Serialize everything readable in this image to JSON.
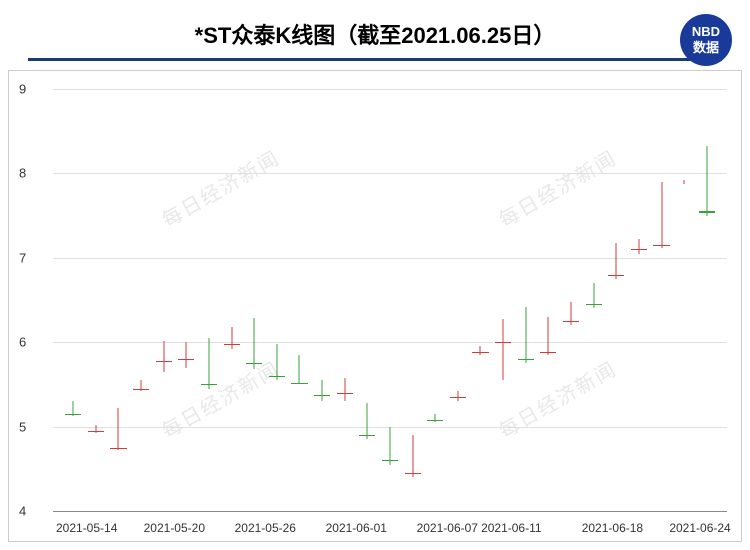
{
  "header": {
    "title": "*ST众泰K线图（截至2021.06.25日）",
    "logo_top": "NBD",
    "logo_bottom": "数据"
  },
  "chart": {
    "type": "candlestick",
    "ylim": [
      4,
      9
    ],
    "yticks": [
      4,
      5,
      6,
      7,
      8,
      9
    ],
    "xlabels": [
      "2021-05-14",
      "2021-05-20",
      "2021-05-26",
      "2021-06-01",
      "2021-06-07",
      "2021-06-11",
      "2021-06-18",
      "2021-06-24"
    ],
    "xlabel_positions_pct": [
      5,
      18,
      31.5,
      45,
      58.5,
      68,
      83,
      96
    ],
    "background_color": "#ffffff",
    "grid_color": "#e0e0e0",
    "up_color": "#d43b3b",
    "down_color": "#3aa03a",
    "watermark_text": "每日经济新闻",
    "watermark_color": "#e8e8e8",
    "candle_width_pct": 2.4,
    "candles": [
      {
        "o": 5.28,
        "c": 5.15,
        "h": 5.3,
        "l": 5.12
      },
      {
        "o": 4.95,
        "c": 4.99,
        "h": 5.02,
        "l": 4.92
      },
      {
        "o": 4.75,
        "c": 5.22,
        "h": 5.22,
        "l": 4.72
      },
      {
        "o": 5.45,
        "c": 5.5,
        "h": 5.55,
        "l": 5.42
      },
      {
        "o": 5.78,
        "c": 5.99,
        "h": 6.02,
        "l": 5.65
      },
      {
        "o": 5.8,
        "c": 5.92,
        "h": 6.0,
        "l": 5.7
      },
      {
        "o": 6.0,
        "c": 5.5,
        "h": 6.05,
        "l": 5.45
      },
      {
        "o": 5.98,
        "c": 6.04,
        "h": 6.18,
        "l": 5.92
      },
      {
        "o": 6.02,
        "c": 5.75,
        "h": 6.29,
        "l": 5.68
      },
      {
        "o": 5.9,
        "c": 5.6,
        "h": 5.98,
        "l": 5.55
      },
      {
        "o": 5.8,
        "c": 5.52,
        "h": 5.85,
        "l": 5.5
      },
      {
        "o": 5.45,
        "c": 5.38,
        "h": 5.55,
        "l": 5.3
      },
      {
        "o": 5.4,
        "c": 5.5,
        "h": 5.58,
        "l": 5.3
      },
      {
        "o": 5.22,
        "c": 4.9,
        "h": 5.28,
        "l": 4.85
      },
      {
        "o": 4.95,
        "c": 4.6,
        "h": 4.99,
        "l": 4.55
      },
      {
        "o": 4.45,
        "c": 4.85,
        "h": 4.9,
        "l": 4.4
      },
      {
        "o": 5.12,
        "c": 5.08,
        "h": 5.15,
        "l": 5.05
      },
      {
        "o": 5.35,
        "c": 5.38,
        "h": 5.42,
        "l": 5.3
      },
      {
        "o": 5.88,
        "c": 5.92,
        "h": 5.95,
        "l": 5.85
      },
      {
        "o": 6.0,
        "c": 6.22,
        "h": 6.28,
        "l": 5.55
      },
      {
        "o": 6.4,
        "c": 5.8,
        "h": 6.42,
        "l": 5.75
      },
      {
        "o": 5.88,
        "c": 6.25,
        "h": 6.3,
        "l": 5.85
      },
      {
        "o": 6.25,
        "c": 6.4,
        "h": 6.48,
        "l": 6.2
      },
      {
        "o": 6.55,
        "c": 6.45,
        "h": 6.7,
        "l": 6.4
      },
      {
        "o": 6.8,
        "c": 7.12,
        "h": 7.18,
        "l": 6.75
      },
      {
        "o": 7.1,
        "c": 7.15,
        "h": 7.22,
        "l": 7.05
      },
      {
        "o": 7.15,
        "c": 7.88,
        "h": 7.9,
        "l": 7.12
      },
      {
        "o": 7.9,
        "c": 7.9,
        "h": 7.92,
        "l": 7.88
      },
      {
        "o": 7.8,
        "c": 7.55,
        "h": 8.32,
        "l": 7.5
      }
    ]
  }
}
